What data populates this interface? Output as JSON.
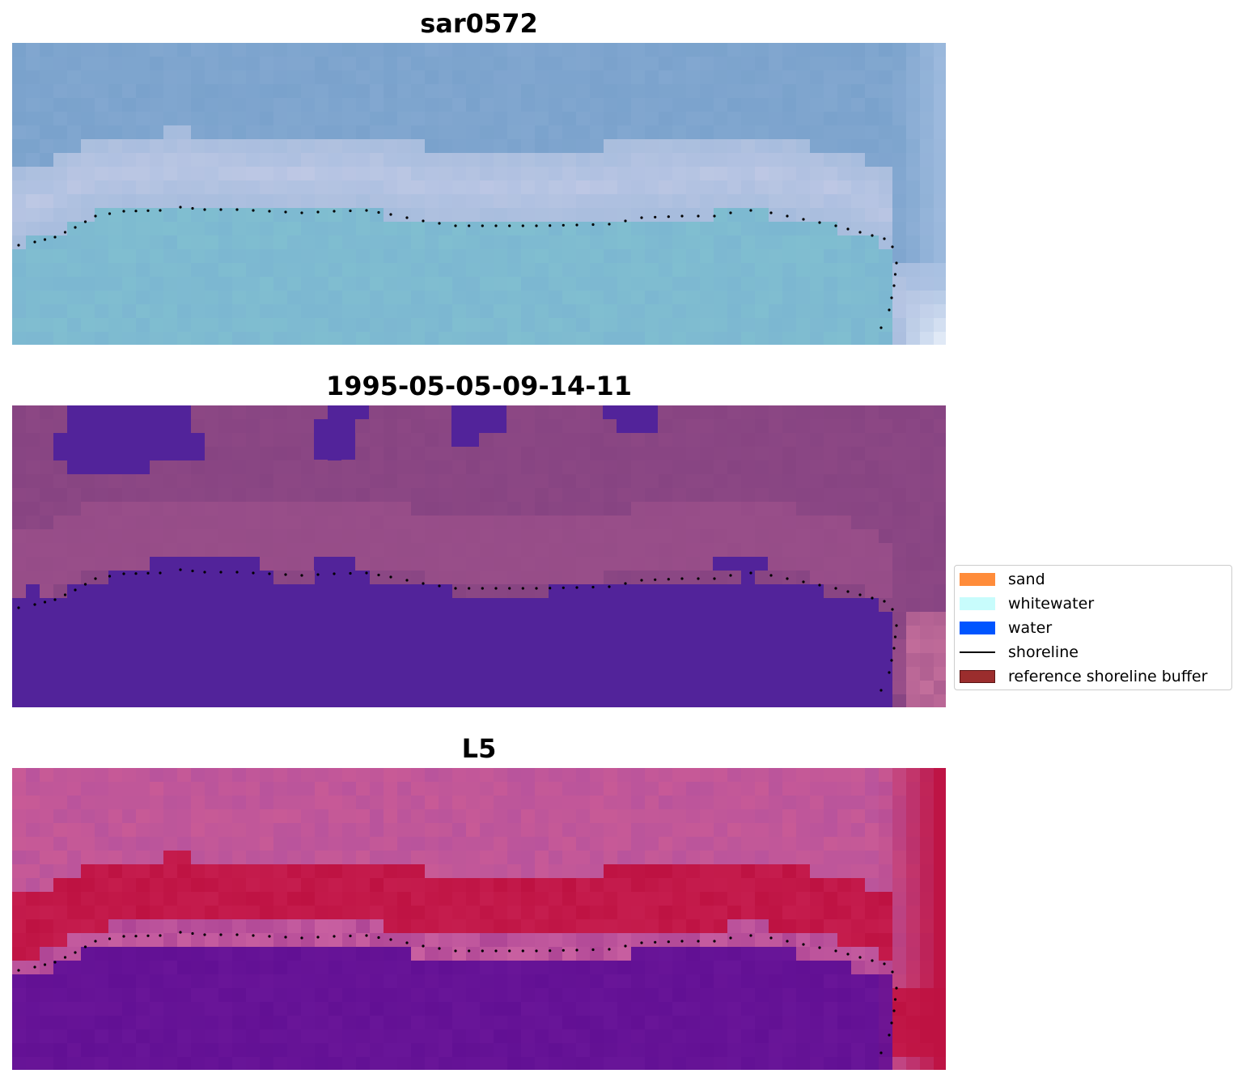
{
  "panels": [
    {
      "title": "sar0572",
      "style": "rgb"
    },
    {
      "title": "1995-05-05-09-14-11",
      "style": "classified"
    },
    {
      "title": "L5",
      "style": "index"
    }
  ],
  "legend": {
    "items": [
      {
        "label": "sand",
        "color": "#ff8c3a",
        "kind": "patch"
      },
      {
        "label": "whitewater",
        "color": "#c8fcfc",
        "kind": "patch"
      },
      {
        "label": "water",
        "color": "#0055ff",
        "kind": "patch"
      },
      {
        "label": "shoreline",
        "color": "#000000",
        "kind": "line"
      },
      {
        "label": "reference shoreline buffer",
        "color": "#9b2d2d",
        "kind": "patch"
      }
    ]
  },
  "colors": {
    "water_class": "#52239a",
    "background_class": "#874482",
    "rgb_water": "#7fbcd0",
    "rgb_sand": "#b8c6e2",
    "index_high": "#b81040",
    "index_low": "#5e1090"
  }
}
